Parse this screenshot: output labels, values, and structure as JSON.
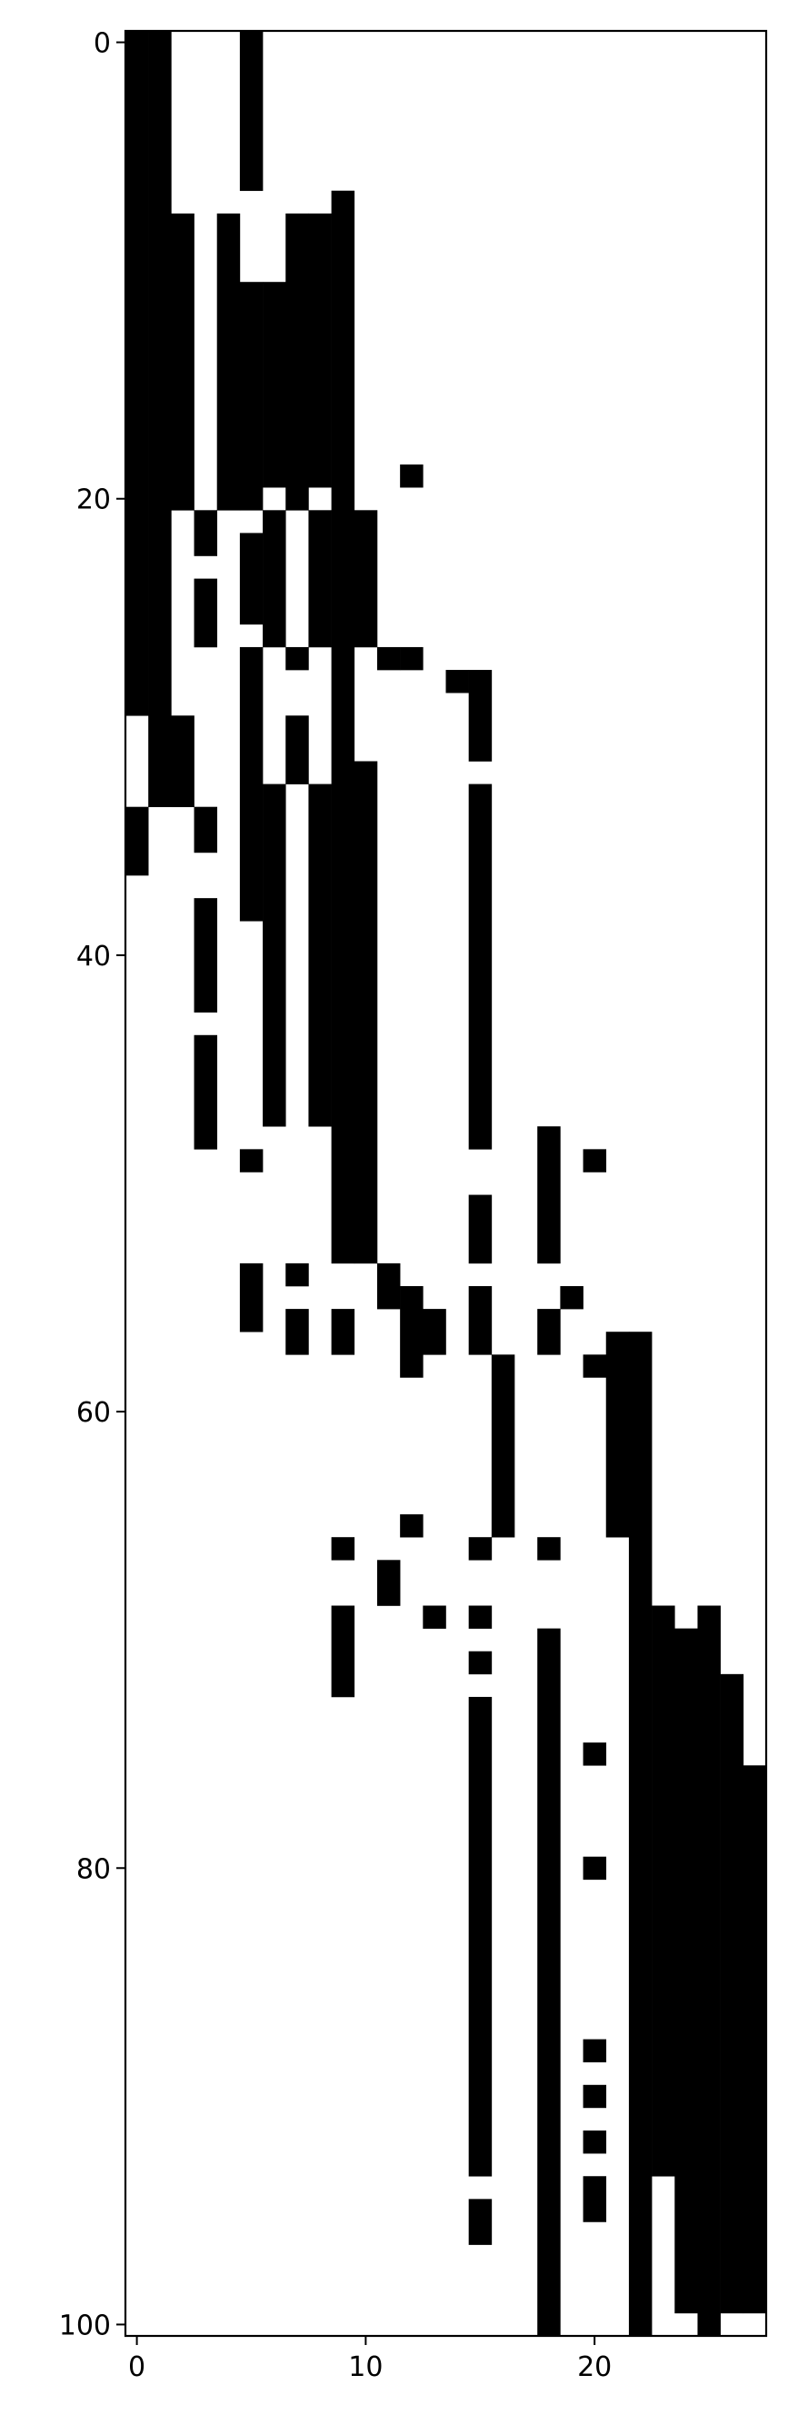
{
  "chart_data": {
    "type": "heatmap",
    "title": "",
    "xlabel": "",
    "ylabel": "",
    "colormap": {
      "0": "#ffffff",
      "1": "#000000"
    },
    "xlim": [
      -0.5,
      27.5
    ],
    "ylim": [
      100.5,
      -0.5
    ],
    "x_ticks": [
      0,
      10,
      20
    ],
    "x_tick_labels": [
      "0",
      "10",
      "20"
    ],
    "y_ticks": [
      0,
      20,
      40,
      60,
      80,
      100
    ],
    "y_tick_labels": [
      "0",
      "20",
      "40",
      "60",
      "80",
      "100"
    ],
    "n_cols": 28,
    "n_rows": 101,
    "filled_cells_by_column": [
      {
        "col": 0,
        "row_ranges": [
          [
            0,
            29
          ],
          [
            34,
            36
          ]
        ]
      },
      {
        "col": 1,
        "row_ranges": [
          [
            0,
            33
          ]
        ]
      },
      {
        "col": 2,
        "row_ranges": [
          [
            8,
            20
          ],
          [
            30,
            33
          ]
        ]
      },
      {
        "col": 3,
        "row_ranges": [
          [
            21,
            22
          ],
          [
            24,
            26
          ],
          [
            34,
            35
          ],
          [
            38,
            42
          ],
          [
            44,
            48
          ]
        ]
      },
      {
        "col": 4,
        "row_ranges": [
          [
            8,
            20
          ]
        ]
      },
      {
        "col": 5,
        "row_ranges": [
          [
            0,
            6
          ],
          [
            11,
            20
          ],
          [
            22,
            25
          ],
          [
            27,
            38
          ],
          [
            49,
            49
          ],
          [
            54,
            56
          ]
        ]
      },
      {
        "col": 6,
        "row_ranges": [
          [
            11,
            19
          ],
          [
            21,
            26
          ],
          [
            33,
            47
          ]
        ]
      },
      {
        "col": 7,
        "row_ranges": [
          [
            8,
            20
          ],
          [
            27,
            27
          ],
          [
            30,
            32
          ],
          [
            54,
            54
          ],
          [
            56,
            57
          ]
        ]
      },
      {
        "col": 8,
        "row_ranges": [
          [
            8,
            19
          ],
          [
            21,
            26
          ],
          [
            33,
            47
          ]
        ]
      },
      {
        "col": 9,
        "row_ranges": [
          [
            7,
            20
          ],
          [
            21,
            53
          ],
          [
            56,
            57
          ],
          [
            66,
            66
          ],
          [
            69,
            72
          ]
        ]
      },
      {
        "col": 10,
        "row_ranges": [
          [
            21,
            26
          ],
          [
            32,
            53
          ]
        ]
      },
      {
        "col": 11,
        "row_ranges": [
          [
            27,
            27
          ],
          [
            54,
            55
          ],
          [
            67,
            68
          ]
        ]
      },
      {
        "col": 12,
        "row_ranges": [
          [
            19,
            19
          ],
          [
            27,
            27
          ],
          [
            55,
            58
          ],
          [
            65,
            65
          ]
        ]
      },
      {
        "col": 13,
        "row_ranges": [
          [
            56,
            57
          ],
          [
            69,
            69
          ]
        ]
      },
      {
        "col": 14,
        "row_ranges": [
          [
            28,
            28
          ]
        ]
      },
      {
        "col": 15,
        "row_ranges": [
          [
            28,
            31
          ],
          [
            33,
            48
          ],
          [
            51,
            53
          ],
          [
            55,
            57
          ],
          [
            66,
            66
          ],
          [
            69,
            69
          ],
          [
            71,
            71
          ],
          [
            73,
            93
          ],
          [
            95,
            96
          ]
        ]
      },
      {
        "col": 16,
        "row_ranges": [
          [
            58,
            65
          ]
        ]
      },
      {
        "col": 17,
        "row_ranges": []
      },
      {
        "col": 18,
        "row_ranges": [
          [
            48,
            53
          ],
          [
            56,
            57
          ],
          [
            66,
            66
          ],
          [
            70,
            100
          ]
        ]
      },
      {
        "col": 19,
        "row_ranges": [
          [
            55,
            55
          ]
        ]
      },
      {
        "col": 20,
        "row_ranges": [
          [
            49,
            49
          ],
          [
            58,
            58
          ],
          [
            75,
            75
          ],
          [
            80,
            80
          ],
          [
            88,
            88
          ],
          [
            90,
            90
          ],
          [
            92,
            92
          ],
          [
            94,
            95
          ]
        ]
      },
      {
        "col": 21,
        "row_ranges": [
          [
            57,
            65
          ]
        ]
      },
      {
        "col": 22,
        "row_ranges": [
          [
            57,
            100
          ]
        ]
      },
      {
        "col": 23,
        "row_ranges": [
          [
            69,
            93
          ]
        ]
      },
      {
        "col": 24,
        "row_ranges": [
          [
            70,
            99
          ]
        ]
      },
      {
        "col": 25,
        "row_ranges": [
          [
            69,
            100
          ]
        ]
      },
      {
        "col": 26,
        "row_ranges": [
          [
            72,
            99
          ]
        ]
      },
      {
        "col": 27,
        "row_ranges": [
          [
            76,
            99
          ]
        ]
      }
    ]
  }
}
